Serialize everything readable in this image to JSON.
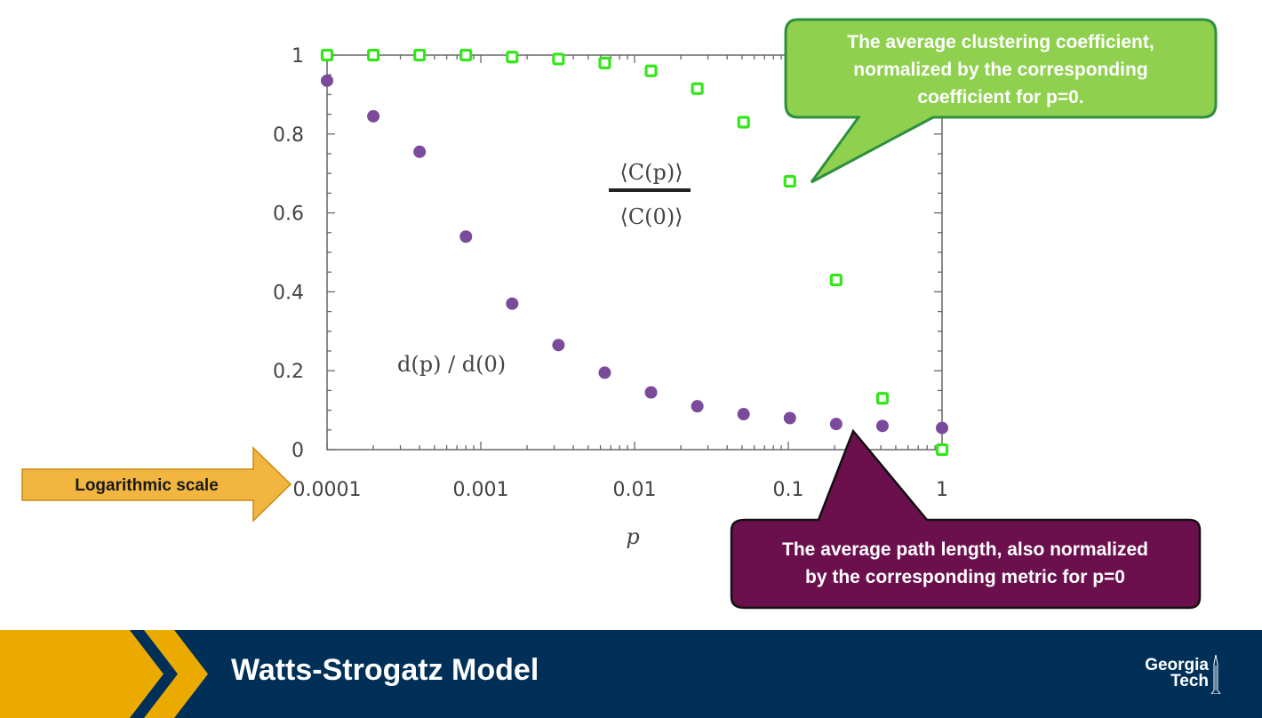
{
  "slide": {
    "title": "Watts-Strogatz Model",
    "logo": {
      "line1": "Georgia",
      "line2": "Tech"
    },
    "arrow_label": "Logarithmic scale",
    "callout_clustering": {
      "lines": [
        "The average clustering coefficient,",
        "normalized by the corresponding",
        "coefficient for p=0."
      ],
      "color": "#8fd14f"
    },
    "callout_path": {
      "lines": [
        "The average path length, also normalized",
        "by the corresponding metric for p=0"
      ],
      "color": "#6b0f4d"
    }
  },
  "chart_data": {
    "type": "scatter",
    "xscale": "log",
    "xlim": [
      0.0001,
      1
    ],
    "ylim": [
      0,
      1
    ],
    "xticks": [
      0.0001,
      0.001,
      0.01,
      0.1,
      1
    ],
    "xtick_labels": [
      "0.0001",
      "0.001",
      "0.01",
      "0.1",
      "1"
    ],
    "yticks": [
      0,
      0.2,
      0.4,
      0.6,
      0.8,
      1
    ],
    "ytick_labels": [
      "0",
      "0.2",
      "0.4",
      "0.6",
      "0.8",
      "1"
    ],
    "xlabel": "p",
    "annotations": {
      "clustering_label": {
        "num": "⟨C(p)⟩",
        "den": "⟨C(0)⟩"
      },
      "path_label": "d(p) / d(0)"
    },
    "series": [
      {
        "key": "clustering",
        "marker": "hollow-square",
        "color": "#33e61a",
        "x": [
          0.0001,
          0.0002,
          0.0004,
          0.0008,
          0.0016,
          0.0032,
          0.0064,
          0.0128,
          0.0256,
          0.0512,
          0.1024,
          0.2048,
          0.4096,
          1.0
        ],
        "y": [
          1.0,
          1.0,
          1.0,
          1.0,
          0.995,
          0.99,
          0.98,
          0.96,
          0.915,
          0.83,
          0.68,
          0.43,
          0.13,
          0.0
        ]
      },
      {
        "key": "path_length",
        "marker": "filled-circle",
        "color": "#7b4a9a",
        "x": [
          0.0001,
          0.0002,
          0.0004,
          0.0008,
          0.0016,
          0.0032,
          0.0064,
          0.0128,
          0.0256,
          0.0512,
          0.1024,
          0.2048,
          0.4096,
          1.0
        ],
        "y": [
          0.935,
          0.845,
          0.755,
          0.54,
          0.37,
          0.265,
          0.195,
          0.145,
          0.11,
          0.09,
          0.08,
          0.065,
          0.06,
          0.055
        ]
      }
    ]
  }
}
